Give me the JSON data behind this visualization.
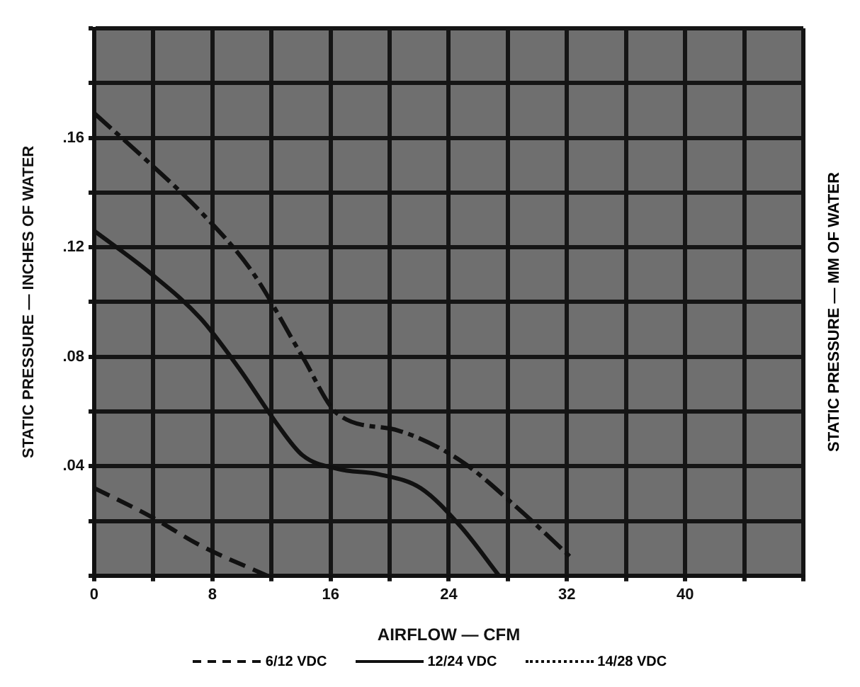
{
  "chart_data": {
    "type": "line",
    "xlabel": "AIRFLOW — CFM",
    "ylabel": "STATIC PRESSURE — INCHES OF WATER",
    "y2label": "STATIC PRESSURE — MM OF WATER",
    "xlim": [
      0,
      48
    ],
    "ylim": [
      0,
      0.2
    ],
    "xticks": [
      0,
      {
        "value": 4,
        "label": null
      },
      8,
      {
        "value": 12,
        "label": null
      },
      16,
      {
        "value": 20,
        "label": null
      },
      24,
      {
        "value": 28,
        "label": null
      },
      32,
      {
        "value": 36,
        "label": null
      },
      40,
      {
        "value": 44,
        "label": null
      },
      {
        "value": 48,
        "label": null
      }
    ],
    "yticks": [
      {
        "value": 0,
        "label": null
      },
      {
        "value": 0.02,
        "label": null
      },
      {
        "value": 0.04,
        "label": ".04"
      },
      {
        "value": 0.06,
        "label": null
      },
      {
        "value": 0.08,
        "label": ".08"
      },
      {
        "value": 0.1,
        "label": null
      },
      {
        "value": 0.12,
        "label": ".12"
      },
      {
        "value": 0.14,
        "label": null
      },
      {
        "value": 0.16,
        "label": ".16"
      },
      {
        "value": 0.18,
        "label": null
      },
      {
        "value": 0.2,
        "label": null
      }
    ],
    "grid": true,
    "legend": "bottom",
    "marker": "none",
    "series": [
      {
        "name": "6/12 VDC",
        "color": "#111111",
        "line_style": "dashed",
        "x": [
          0,
          3.7,
          7.2,
          11.7
        ],
        "values": [
          0.032,
          0.022,
          0.011,
          0
        ]
      },
      {
        "name": "12/24 VDC",
        "color": "#111111",
        "line_style": "solid",
        "x": [
          0,
          3.7,
          7.2,
          9.9,
          12.3,
          14.1,
          16.5,
          19.3,
          22.1,
          24.8,
          27.4
        ],
        "values": [
          0.126,
          0.111,
          0.094,
          0.075,
          0.056,
          0.044,
          0.039,
          0.037,
          0.032,
          0.018,
          0
        ]
      },
      {
        "name": "14/28 VDC",
        "color": "#111111",
        "line_style": "dotted",
        "x": [
          0,
          3.7,
          7.2,
          10.7,
          14.1,
          16.5,
          20.6,
          24.8,
          28.6,
          32.4
        ],
        "values": [
          0.169,
          0.151,
          0.133,
          0.111,
          0.08,
          0.059,
          0.053,
          0.042,
          0.025,
          0.006
        ]
      }
    ]
  }
}
